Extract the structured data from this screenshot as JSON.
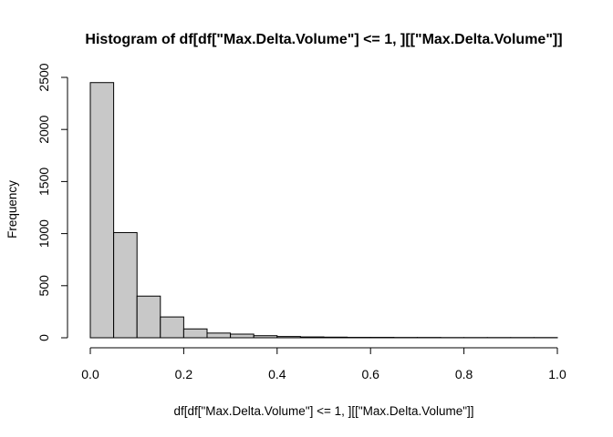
{
  "chart_data": {
    "type": "bar",
    "title": "Histogram of df[df[\"Max.Delta.Volume\"] <= 1, ][[\"Max.Delta.Volume\"]]",
    "xlabel": "df[df[\"Max.Delta.Volume\"] <= 1, ][[\"Max.Delta.Volume\"]]",
    "ylabel": "Frequency",
    "bin_edges": [
      0.0,
      0.05,
      0.1,
      0.15,
      0.2,
      0.25,
      0.3,
      0.35,
      0.4,
      0.45,
      0.5,
      0.55,
      0.6,
      0.65,
      0.7,
      0.75,
      0.8,
      0.85,
      0.9,
      0.95,
      1.0
    ],
    "values": [
      2450,
      1010,
      400,
      200,
      85,
      45,
      35,
      20,
      12,
      8,
      6,
      4,
      4,
      3,
      3,
      2,
      2,
      2,
      2,
      2
    ],
    "bar_color": "#c8c8c8",
    "xlim": [
      0,
      1.0
    ],
    "ylim": [
      0,
      2500
    ],
    "xticks": [
      0.0,
      0.2,
      0.4,
      0.6,
      0.8,
      1.0
    ],
    "xtick_labels": [
      "0.0",
      "0.2",
      "0.4",
      "0.6",
      "0.8",
      "1.0"
    ],
    "yticks": [
      0,
      500,
      1000,
      1500,
      2000,
      2500
    ],
    "ytick_labels": [
      "0",
      "500",
      "1000",
      "1500",
      "2000",
      "2500"
    ],
    "grid": false,
    "legend": "none"
  }
}
